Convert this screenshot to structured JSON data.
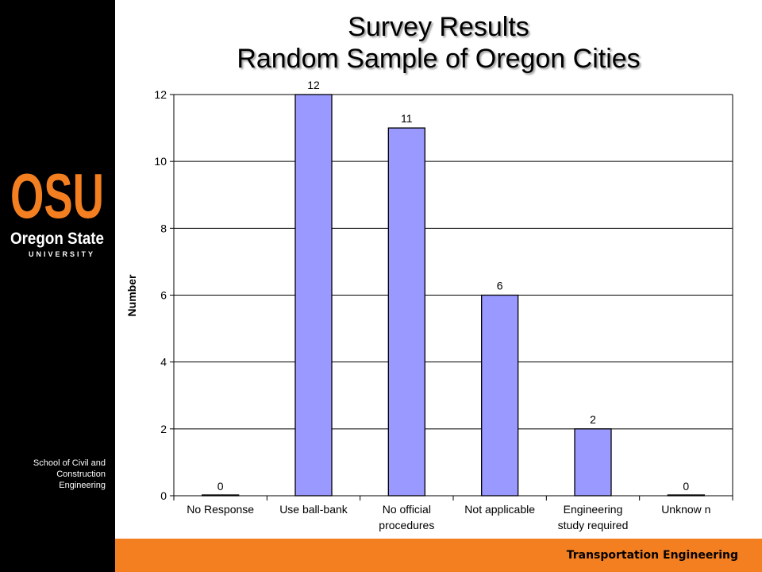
{
  "slide": {
    "title_line1": "Survey Results",
    "title_line2": "Random Sample of Oregon Cities",
    "department": [
      "School of Civil and",
      "Construction",
      "Engineering"
    ],
    "footer": "Transportation Engineering"
  },
  "logo": {
    "wordmark": "OSU",
    "name": "Oregon State",
    "sub": "UNIVERSITY"
  },
  "colors": {
    "sidebar": "#000000",
    "footer": "#f47f20",
    "logo_orange": "#f47f20",
    "bar_fill": "#9999ff"
  },
  "chart_data": {
    "type": "bar",
    "categories": [
      [
        "No Response"
      ],
      [
        "Use ball-bank"
      ],
      [
        "No official",
        "procedures"
      ],
      [
        "Not applicable"
      ],
      [
        "Engineering",
        "study required"
      ],
      [
        "Unknow n"
      ]
    ],
    "values": [
      0,
      12,
      11,
      6,
      2,
      0
    ],
    "data_labels": [
      "0",
      "12",
      "11",
      "6",
      "2",
      "0"
    ],
    "xlabel": "",
    "ylabel": "Number",
    "ylim": [
      0,
      12
    ],
    "yticks": [
      0,
      2,
      4,
      6,
      8,
      10,
      12
    ],
    "grid": true,
    "legend": "none"
  }
}
